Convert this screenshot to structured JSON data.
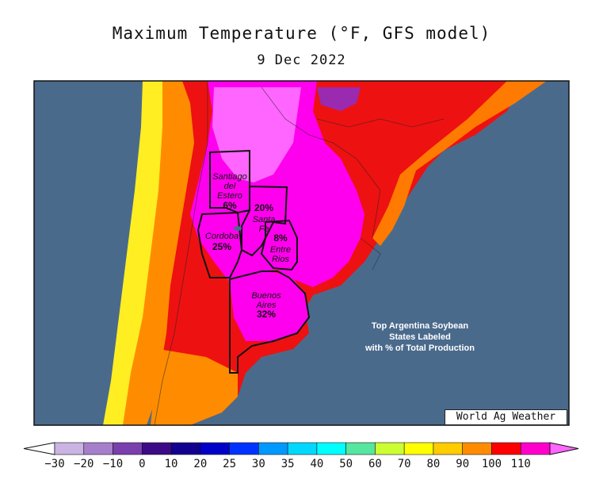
{
  "title": "Maximum Temperature (°F, GFS model)",
  "date": "9 Dec 2022",
  "credit": "World Ag Weather",
  "note_lines": [
    "Top Argentina Soybean",
    "States Labeled",
    "with % of Total Production"
  ],
  "states": [
    {
      "name_lines": [
        "Santiago",
        "del",
        "Estero"
      ],
      "pct": "6%"
    },
    {
      "name_lines": [
        "Santa",
        "Fe"
      ],
      "pct": "20%"
    },
    {
      "name_lines": [
        "Cordoba"
      ],
      "pct": "25%"
    },
    {
      "name_lines": [
        "Entre",
        "Rios"
      ],
      "pct": "8%"
    },
    {
      "name_lines": [
        "Buenos",
        "Aires"
      ],
      "pct": "32%"
    }
  ],
  "colorbar": {
    "ticks": [
      "−30",
      "−20",
      "−10",
      "0",
      "10",
      "20",
      "25",
      "30",
      "35",
      "40",
      "50",
      "60",
      "70",
      "80",
      "90",
      "100",
      "110"
    ],
    "colors": [
      "#ffffff",
      "#c9b4e3",
      "#a67fcc",
      "#7a3fae",
      "#3c0a86",
      "#12008f",
      "#0000c8",
      "#0033ff",
      "#0099ff",
      "#00d8ff",
      "#00ffff",
      "#55e6a0",
      "#ccff33",
      "#ffff00",
      "#ffcc00",
      "#ff8c00",
      "#ff0000",
      "#ff00cc",
      "#ff66ff"
    ]
  },
  "colors": {
    "ocean": "#4a6a8c",
    "land_hot": "#ff00ee",
    "land_red": "#ee1010",
    "land_orange": "#ff7a00",
    "land_yellow": "#ffcc00"
  }
}
